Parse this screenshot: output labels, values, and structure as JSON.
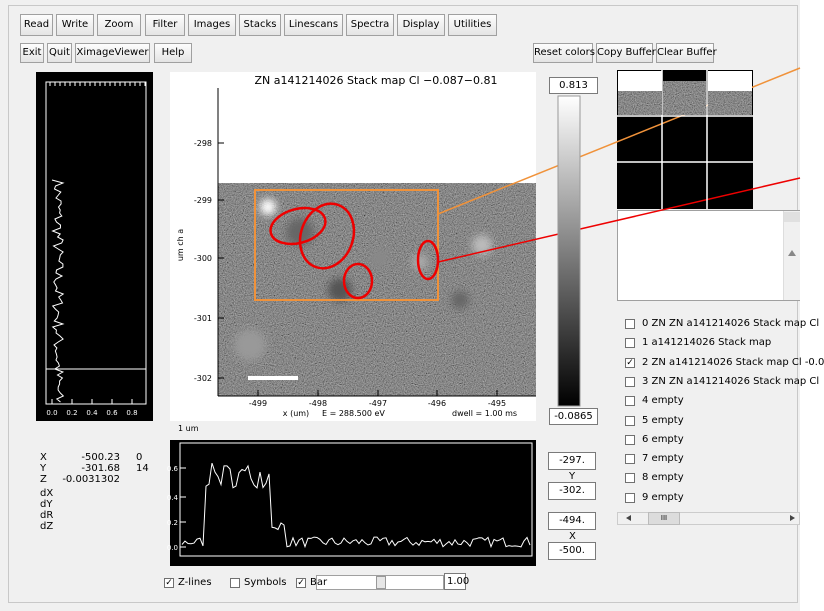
{
  "menu": {
    "row1": [
      "Read",
      "Write",
      "Zoom",
      "Filter",
      "Images",
      "Stacks",
      "Linescans",
      "Spectra",
      "Display",
      "Utilities"
    ],
    "row2": [
      "Exit",
      "Quit",
      "XimageViewer",
      "Help"
    ],
    "buffer_buttons": [
      "Reset colors",
      "Copy Buffer",
      "Clear Buffer"
    ]
  },
  "image_panel": {
    "title": "ZN a141214026 Stack map Cl −0.087−0.81",
    "y_ticks": [
      "-298",
      "-299",
      "-300",
      "-301",
      "-302"
    ],
    "x_ticks": [
      "-499",
      "-498",
      "-497",
      "-496",
      "-495"
    ],
    "y_axis_label": "um ch a",
    "x_axis_label": "x (um)",
    "energy": "E =  288.500 eV",
    "dwell": "dwell =   1.00 ms",
    "scale_bar_label": "1 um"
  },
  "color_bar": {
    "max": "0.813",
    "min": "-0.0865"
  },
  "left_profile": {
    "x_ticks": [
      "0.0",
      "0.2",
      "0.4",
      "0.6",
      "0.8"
    ]
  },
  "cursor_info": {
    "rows": [
      [
        "X",
        "-500.23",
        "0"
      ],
      [
        "Y",
        "-301.68",
        "14"
      ],
      [
        "Z",
        "-0.0031302"
      ]
    ],
    "deltas": [
      "dX",
      "dY",
      "dR",
      "dZ"
    ]
  },
  "line_profile": {
    "y_ticks": [
      "0.6",
      "0.4",
      "0.2",
      "0.0"
    ]
  },
  "range_fields": {
    "y_max": "-297.",
    "y_label": "Y",
    "y_min": "-302.",
    "x_max": "-494.",
    "x_label": "X",
    "x_min": "-500."
  },
  "buffer_list": [
    {
      "label": "0 ZN ZN a141214026 Stack map Cl",
      "checked": false
    },
    {
      "label": "1 a141214026 Stack map",
      "checked": false
    },
    {
      "label": "2 ZN a141214026 Stack map Cl -0.0",
      "checked": true
    },
    {
      "label": "3 ZN ZN a141214026 Stack map Cl",
      "checked": false
    },
    {
      "label": "4 empty",
      "checked": false
    },
    {
      "label": "5 empty",
      "checked": false
    },
    {
      "label": "6 empty",
      "checked": false
    },
    {
      "label": "7 empty",
      "checked": false
    },
    {
      "label": "8 empty",
      "checked": false
    },
    {
      "label": "9 empty",
      "checked": false
    }
  ],
  "scrollbar_thumb": "III",
  "options": [
    {
      "label": "Z-lines",
      "checked": true
    },
    {
      "label": "Symbols",
      "checked": false
    },
    {
      "label": "Bar",
      "checked": true
    }
  ],
  "bar_width": "1.00"
}
